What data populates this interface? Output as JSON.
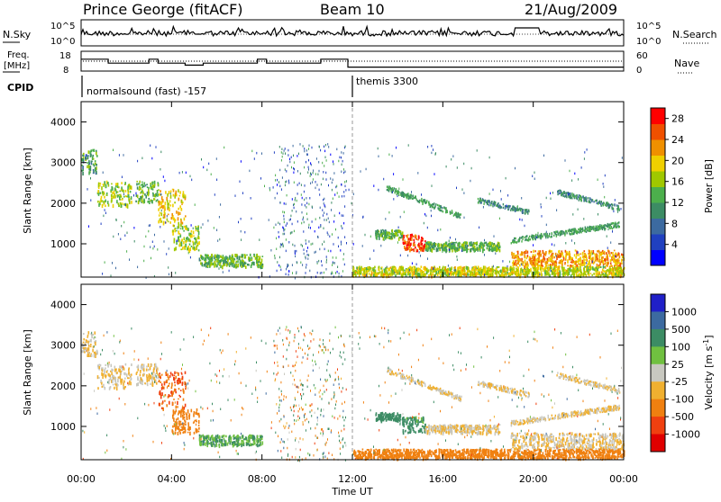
{
  "header": {
    "station": "Prince George (fitACF)",
    "beam": "Beam 10",
    "date": "21/Aug/2009"
  },
  "summary": {
    "noise_left_label": "N.Sky",
    "noise_left_ticks": [
      "10^5",
      "10^0"
    ],
    "noise_right_label": "N.Search",
    "noise_right_ticks": [
      "10^5",
      "10^0"
    ],
    "freq_label_line1": "Freq.",
    "freq_label_line2": "[MHz]",
    "freq_ticks": [
      "18",
      "8"
    ],
    "nave_label": "Nave",
    "nave_ticks": [
      "60",
      "0"
    ],
    "cpid_label": "CPID",
    "cpid_segments": [
      {
        "name": "normalsound (fast) -157",
        "start_hour": 0,
        "end_hour": 12
      },
      {
        "name": "themis 3300",
        "start_hour": 12,
        "end_hour": 24
      }
    ],
    "freq_steps": [
      {
        "t0": 0,
        "t1": 1.2,
        "f": 14
      },
      {
        "t0": 1.2,
        "t1": 3.0,
        "f": 12
      },
      {
        "t0": 3.0,
        "t1": 3.4,
        "f": 14
      },
      {
        "t0": 3.4,
        "t1": 4.6,
        "f": 12
      },
      {
        "t0": 4.6,
        "t1": 5.4,
        "f": 11
      },
      {
        "t0": 5.4,
        "t1": 7.8,
        "f": 12
      },
      {
        "t0": 7.8,
        "t1": 8.2,
        "f": 14
      },
      {
        "t0": 8.2,
        "t1": 9.2,
        "f": 12
      },
      {
        "t0": 9.2,
        "t1": 10.6,
        "f": 12
      },
      {
        "t0": 10.6,
        "t1": 11.8,
        "f": 14
      },
      {
        "t0": 11.8,
        "t1": 24,
        "f": 10
      }
    ]
  },
  "chart_data": [
    {
      "type": "heatmap",
      "panel": "power",
      "ylabel": "Slant Range [km]",
      "ylim": [
        180,
        4500
      ],
      "yticks": [
        1000,
        2000,
        3000,
        4000
      ],
      "xlim": [
        0,
        24
      ],
      "colorbar_label": "Power [dB]",
      "colorbar_ticks": [
        4,
        8,
        12,
        16,
        20,
        24,
        28
      ],
      "colorbar_range": [
        0,
        30
      ],
      "colorbar_colors": [
        "#0000ff",
        "#2040c0",
        "#3c6aa0",
        "#3c8c64",
        "#4caf4c",
        "#a0c800",
        "#f0d000",
        "#f09000",
        "#f05000",
        "#ff0000"
      ],
      "echo_regions": [
        {
          "t0": 0.0,
          "t1": 0.7,
          "r0": 2700,
          "r1": 3300,
          "v": 12
        },
        {
          "t0": 0.7,
          "t1": 2.2,
          "r0": 1900,
          "r1": 2500,
          "v": 16
        },
        {
          "t0": 2.4,
          "t1": 3.4,
          "r0": 2000,
          "r1": 2500,
          "v": 14
        },
        {
          "t0": 3.4,
          "t1": 4.6,
          "r0": 1400,
          "r1": 2300,
          "v": 20
        },
        {
          "t0": 4.0,
          "t1": 5.2,
          "r0": 800,
          "r1": 1400,
          "v": 16
        },
        {
          "t0": 5.2,
          "t1": 8.0,
          "r0": 400,
          "r1": 700,
          "v": 14
        },
        {
          "t0": 13.0,
          "t1": 14.2,
          "r0": 1100,
          "r1": 1300,
          "v": 14
        },
        {
          "t0": 14.2,
          "t1": 15.2,
          "r0": 800,
          "r1": 1200,
          "v": 26
        },
        {
          "t0": 15.2,
          "t1": 18.5,
          "r0": 800,
          "r1": 1000,
          "v": 14
        },
        {
          "t0": 19.0,
          "t1": 24.0,
          "r0": 400,
          "r1": 800,
          "v": 22
        },
        {
          "t0": 12.0,
          "t1": 24.0,
          "r0": 180,
          "r1": 400,
          "v": 18
        }
      ],
      "arcs": [
        {
          "t0": 13.5,
          "t1": 16.8,
          "r0": 2400,
          "r1": 1700,
          "v": 12
        },
        {
          "t0": 17.5,
          "t1": 19.8,
          "r0": 2100,
          "r1": 1800,
          "v": 10
        },
        {
          "t0": 19.0,
          "t1": 23.8,
          "r0": 1100,
          "r1": 1500,
          "v": 12
        },
        {
          "t0": 21.0,
          "t1": 23.8,
          "r0": 2300,
          "r1": 1900,
          "v": 10
        }
      ]
    },
    {
      "type": "heatmap",
      "panel": "velocity",
      "ylabel": "Slant Range [km]",
      "ylim": [
        180,
        4500
      ],
      "yticks": [
        1000,
        2000,
        3000,
        4000
      ],
      "xlim": [
        0,
        24
      ],
      "xlabel": "Time UT",
      "xticks": [
        "00:00",
        "04:00",
        "08:00",
        "12:00",
        "16:00",
        "20:00",
        "00:00"
      ],
      "colorbar_label": "Velocity [m s^-1]",
      "colorbar_ticks": [
        "1000",
        "500",
        "100",
        "25",
        "-25",
        "-100",
        "-500",
        "-1000"
      ],
      "colorbar_colors": [
        "#2020c8",
        "#3c6aa0",
        "#3c8c64",
        "#70c040",
        "#c8c8c0",
        "#f0b030",
        "#f08010",
        "#f04010",
        "#e00000"
      ],
      "echo_regions": [
        {
          "t0": 0.0,
          "t1": 0.7,
          "r0": 2700,
          "r1": 3300,
          "v": -25
        },
        {
          "t0": 0.7,
          "t1": 2.2,
          "r0": 1900,
          "r1": 2500,
          "v": -25
        },
        {
          "t0": 2.4,
          "t1": 3.4,
          "r0": 2000,
          "r1": 2500,
          "v": -25
        },
        {
          "t0": 3.4,
          "t1": 4.6,
          "r0": 1400,
          "r1": 2300,
          "v": -500
        },
        {
          "t0": 4.0,
          "t1": 5.2,
          "r0": 800,
          "r1": 1400,
          "v": -200
        },
        {
          "t0": 5.2,
          "t1": 8.0,
          "r0": 500,
          "r1": 750,
          "v": 100
        },
        {
          "t0": 13.0,
          "t1": 14.2,
          "r0": 1100,
          "r1": 1300,
          "v": 200
        },
        {
          "t0": 14.2,
          "t1": 15.2,
          "r0": 800,
          "r1": 1200,
          "v": 120
        },
        {
          "t0": 15.2,
          "t1": 18.5,
          "r0": 800,
          "r1": 1000,
          "v": -25
        },
        {
          "t0": 19.0,
          "t1": 24.0,
          "r0": 400,
          "r1": 800,
          "v": -25
        },
        {
          "t0": 12.0,
          "t1": 24.0,
          "r0": 180,
          "r1": 400,
          "v": -200
        }
      ],
      "arcs": [
        {
          "t0": 13.5,
          "t1": 16.8,
          "r0": 2400,
          "r1": 1700,
          "v": -25
        },
        {
          "t0": 17.5,
          "t1": 19.8,
          "r0": 2100,
          "r1": 1800,
          "v": -25
        },
        {
          "t0": 19.0,
          "t1": 23.8,
          "r0": 1100,
          "r1": 1500,
          "v": -25
        },
        {
          "t0": 21.0,
          "t1": 23.8,
          "r0": 2300,
          "r1": 1900,
          "v": -25
        }
      ]
    }
  ]
}
